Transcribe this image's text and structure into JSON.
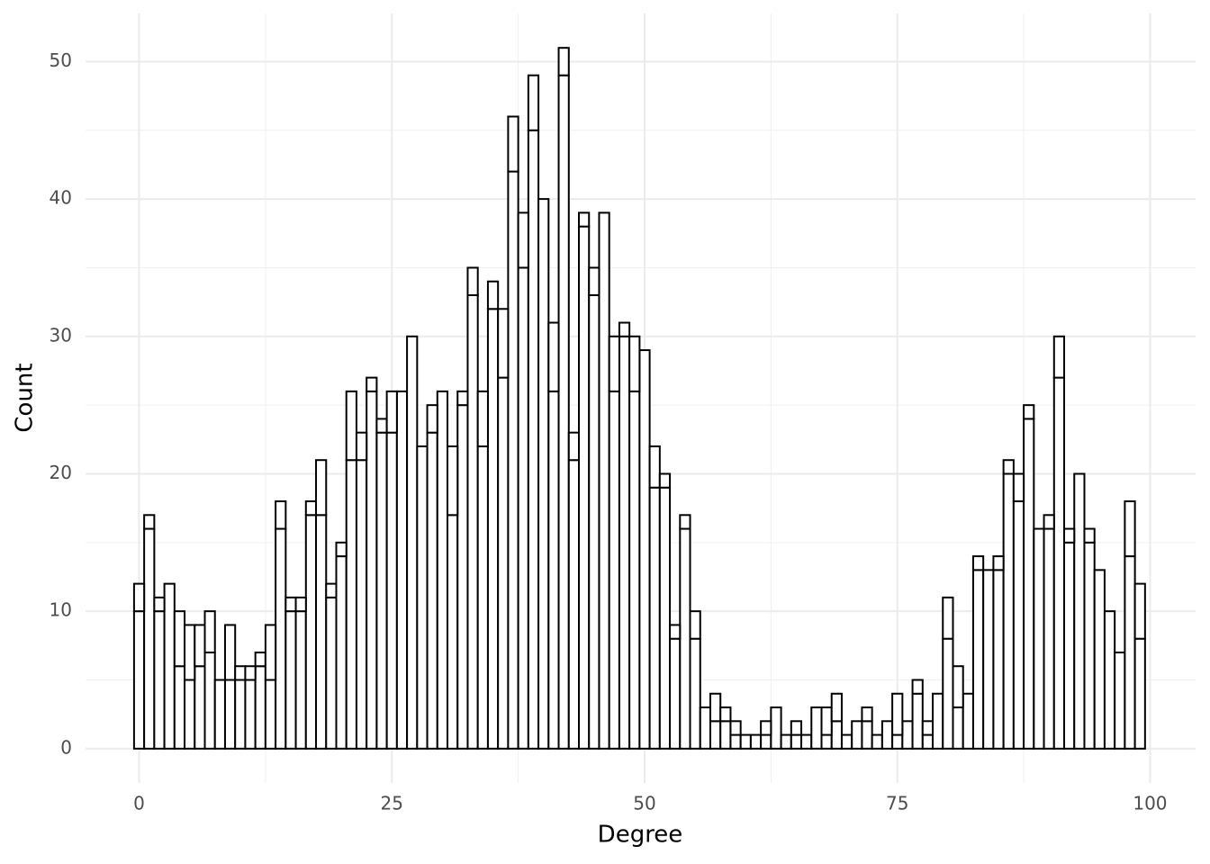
{
  "chart_data": {
    "type": "histogram",
    "x_label": "Degree",
    "y_label": "Count",
    "bins": [
      -0.5,
      0.5,
      1.5,
      2.5,
      3.5,
      4.5,
      5.5,
      6.5,
      7.5,
      8.5,
      9.5,
      10.5,
      11.5,
      12.5,
      13.5,
      14.5,
      15.5,
      16.5,
      17.5,
      18.5,
      19.5,
      20.5,
      21.5,
      22.5,
      23.5,
      24.5,
      25.5,
      26.5,
      27.5,
      28.5,
      29.5,
      30.5,
      31.5,
      32.5,
      33.5,
      34.5,
      35.5,
      36.5,
      37.5,
      38.5,
      39.5,
      40.5,
      41.5,
      42.5,
      43.5,
      44.5,
      45.5,
      46.5,
      47.5,
      48.5,
      49.5,
      50.5,
      51.5,
      52.5,
      53.5,
      54.5,
      55.5,
      56.5,
      57.5,
      58.5,
      59.5,
      60.5,
      61.5,
      62.5,
      63.5,
      64.5,
      65.5,
      66.5,
      67.5,
      68.5,
      69.5,
      70.5,
      71.5,
      72.5,
      73.5,
      74.5,
      75.5,
      76.5,
      77.5,
      78.5,
      79.5,
      80.5,
      81.5,
      82.5,
      83.5,
      84.5,
      85.5,
      86.5,
      87.5,
      88.5,
      89.5,
      90.5,
      91.5,
      92.5,
      93.5,
      94.5,
      95.5,
      96.5,
      97.5,
      98.5,
      99.5
    ],
    "series": [
      {
        "color": "#ffffff",
        "values": [
          10,
          16,
          10,
          12,
          6,
          5,
          6,
          7,
          5,
          5,
          5,
          5,
          6,
          5,
          16,
          10,
          10,
          17,
          17,
          11,
          14,
          21,
          21,
          26,
          23,
          23,
          26,
          30,
          22,
          23,
          26,
          17,
          25,
          33,
          22,
          32,
          27,
          42,
          35,
          45,
          40,
          26,
          49,
          21,
          38,
          33,
          39,
          26,
          30,
          26,
          29,
          19,
          19,
          8,
          16,
          8,
          3,
          2,
          2,
          1,
          1,
          1,
          1,
          3,
          1,
          1,
          1,
          3,
          1,
          2,
          1,
          2,
          2,
          1,
          2,
          1,
          2,
          4,
          1,
          4,
          8,
          3,
          4,
          13,
          13,
          13,
          20,
          18,
          24,
          16,
          16,
          27,
          15,
          20,
          15,
          13,
          10,
          7,
          14,
          8
        ]
      },
      {
        "color": "#ffffff",
        "values": [
          2,
          1,
          1,
          0,
          4,
          4,
          3,
          3,
          0,
          4,
          1,
          1,
          1,
          4,
          2,
          1,
          1,
          1,
          4,
          1,
          1,
          5,
          2,
          1,
          1,
          3,
          0,
          0,
          0,
          2,
          0,
          5,
          1,
          2,
          4,
          2,
          5,
          4,
          4,
          4,
          0,
          5,
          2,
          2,
          1,
          2,
          0,
          4,
          1,
          4,
          0,
          3,
          1,
          1,
          1,
          2,
          0,
          2,
          1,
          1,
          0,
          0,
          1,
          0,
          0,
          1,
          0,
          0,
          2,
          2,
          0,
          0,
          1,
          0,
          0,
          3,
          0,
          1,
          1,
          0,
          3,
          3,
          0,
          1,
          0,
          1,
          1,
          2,
          1,
          0,
          1,
          3,
          1,
          0,
          1,
          0,
          0,
          0,
          4,
          4
        ]
      }
    ],
    "edgecolor": "#000000",
    "xlim": [
      -5.3,
      104.5
    ],
    "xticks": [
      0,
      25,
      50,
      75,
      100
    ],
    "x_minor_grid": [
      12.5,
      37.5,
      62.5,
      87.5
    ],
    "ylim": [
      -2.5,
      53.5
    ],
    "yticks": [
      0,
      10,
      20,
      30,
      40,
      50
    ],
    "y_minor_grid": [
      5,
      15,
      25,
      35,
      45
    ],
    "grid": true
  }
}
